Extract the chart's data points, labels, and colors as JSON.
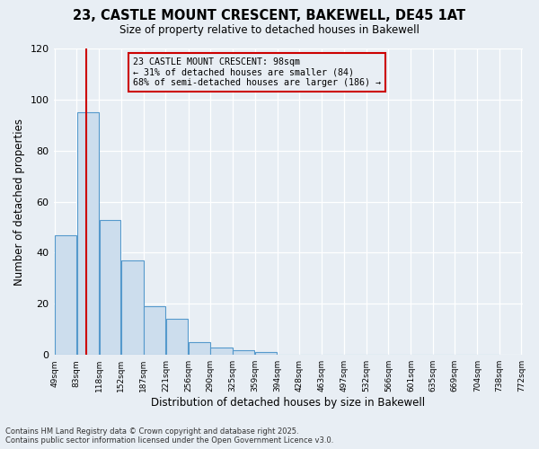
{
  "title_line1": "23, CASTLE MOUNT CRESCENT, BAKEWELL, DE45 1AT",
  "title_line2": "Size of property relative to detached houses in Bakewell",
  "xlabel": "Distribution of detached houses by size in Bakewell",
  "ylabel": "Number of detached properties",
  "bin_edges": [
    49,
    83,
    118,
    152,
    187,
    221,
    256,
    290,
    325,
    359,
    394,
    428,
    463,
    497,
    532,
    566,
    601,
    635,
    669,
    704,
    738
  ],
  "bar_heights": [
    47,
    95,
    53,
    37,
    19,
    14,
    5,
    3,
    2,
    1,
    0,
    0,
    0,
    0,
    0,
    0,
    0,
    0,
    0,
    0
  ],
  "bar_color": "#ccdded",
  "bar_edge_color": "#5599cc",
  "property_size": 98,
  "annotation_line1": "23 CASTLE MOUNT CRESCENT: 98sqm",
  "annotation_line2": "← 31% of detached houses are smaller (84)",
  "annotation_line3": "68% of semi-detached houses are larger (186) →",
  "vline_color": "#cc0000",
  "annotation_box_edge": "#cc0000",
  "ylim": [
    0,
    120
  ],
  "yticks": [
    0,
    20,
    40,
    60,
    80,
    100,
    120
  ],
  "footer_line1": "Contains HM Land Registry data © Crown copyright and database right 2025.",
  "footer_line2": "Contains public sector information licensed under the Open Government Licence v3.0.",
  "bg_color": "#e8eef4"
}
